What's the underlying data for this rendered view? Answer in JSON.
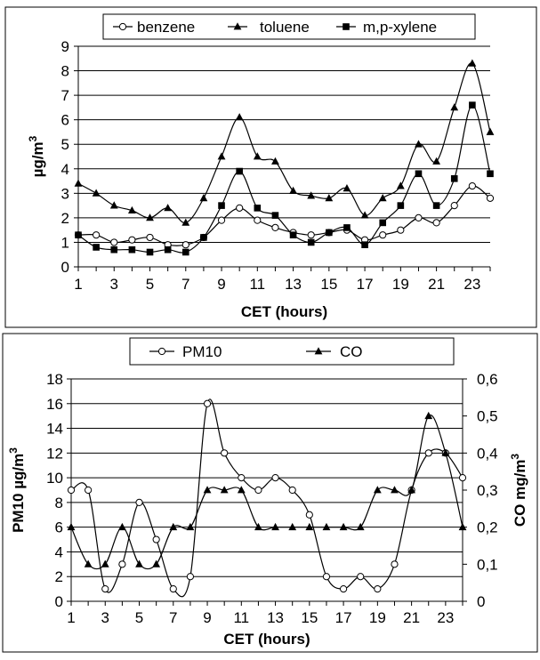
{
  "chart_data": [
    {
      "type": "line",
      "xlabel": "CET (hours)",
      "ylabel": "µg/m",
      "ylabel_sup": "3",
      "ylim": [
        0,
        9
      ],
      "yticks": [
        0,
        1,
        2,
        3,
        4,
        5,
        6,
        7,
        8,
        9
      ],
      "xticks": [
        1,
        3,
        5,
        7,
        9,
        11,
        13,
        15,
        17,
        19,
        21,
        23
      ],
      "grid": "horizontal",
      "legend_position": "top",
      "x": [
        1,
        2,
        3,
        4,
        5,
        6,
        7,
        8,
        9,
        10,
        11,
        12,
        13,
        14,
        15,
        16,
        17,
        18,
        19,
        20,
        21,
        22,
        23,
        24
      ],
      "series": [
        {
          "name": "benzene",
          "marker": "circle-open",
          "values": [
            1.3,
            1.3,
            1.0,
            1.1,
            1.2,
            0.9,
            0.9,
            1.2,
            1.9,
            2.4,
            1.9,
            1.6,
            1.4,
            1.3,
            1.4,
            1.5,
            1.1,
            1.3,
            1.5,
            2.0,
            1.8,
            2.5,
            3.3,
            2.8
          ]
        },
        {
          "name": "toluene",
          "marker": "triangle",
          "values": [
            3.4,
            3.0,
            2.5,
            2.3,
            2.0,
            2.4,
            1.8,
            2.8,
            4.5,
            6.1,
            4.5,
            4.3,
            3.1,
            2.9,
            2.8,
            3.2,
            2.1,
            2.8,
            3.3,
            5.0,
            4.3,
            6.5,
            8.3,
            5.5
          ]
        },
        {
          "name": "m,p-xylene",
          "marker": "square",
          "values": [
            1.3,
            0.8,
            0.7,
            0.7,
            0.6,
            0.7,
            0.6,
            1.2,
            2.5,
            3.9,
            2.4,
            2.1,
            1.3,
            1.0,
            1.4,
            1.6,
            0.9,
            1.8,
            2.5,
            3.8,
            2.5,
            3.6,
            6.6,
            3.8
          ]
        }
      ]
    },
    {
      "type": "line",
      "xlabel": "CET (hours)",
      "ylabel_left": "PM10 µg/m",
      "ylabel_left_sup": "3",
      "ylabel_right": "CO mg/m",
      "ylabel_right_sup": "3",
      "ylim_left": [
        0,
        18
      ],
      "ylim_right": [
        0,
        0.6
      ],
      "yticks_left": [
        0,
        2,
        4,
        6,
        8,
        10,
        12,
        14,
        16,
        18
      ],
      "yticks_right": [
        "0",
        "0,1",
        "0,2",
        "0,3",
        "0,4",
        "0,5",
        "0,6"
      ],
      "xticks": [
        1,
        3,
        5,
        7,
        9,
        11,
        13,
        15,
        17,
        19,
        21,
        23
      ],
      "grid": "horizontal",
      "legend_position": "top",
      "x": [
        1,
        2,
        3,
        4,
        5,
        6,
        7,
        8,
        9,
        10,
        11,
        12,
        13,
        14,
        15,
        16,
        17,
        18,
        19,
        20,
        21,
        22,
        23,
        24
      ],
      "series": [
        {
          "name": "PM10",
          "marker": "circle-open",
          "axis": "left",
          "values": [
            9,
            9,
            1,
            3,
            8,
            5,
            1,
            2,
            16,
            12,
            10,
            9,
            10,
            9,
            7,
            2,
            1,
            2,
            1,
            3,
            9,
            12,
            12,
            10
          ]
        },
        {
          "name": "CO",
          "marker": "triangle",
          "axis": "right",
          "values": [
            0.2,
            0.1,
            0.1,
            0.2,
            0.1,
            0.1,
            0.2,
            0.2,
            0.3,
            0.3,
            0.3,
            0.2,
            0.2,
            0.2,
            0.2,
            0.2,
            0.2,
            0.2,
            0.3,
            0.3,
            0.3,
            0.5,
            0.4,
            0.2
          ]
        }
      ]
    }
  ]
}
